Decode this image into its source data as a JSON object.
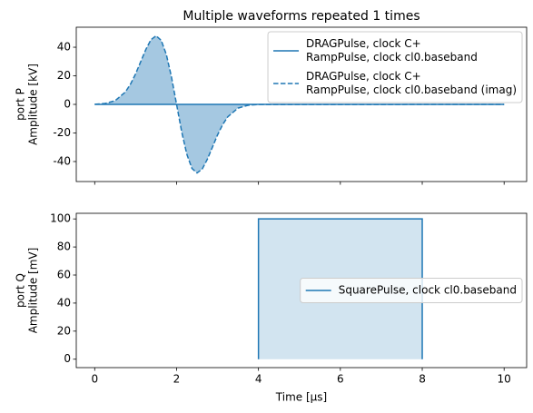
{
  "chart_data": [
    {
      "type": "line",
      "title": "Multiple waveforms repeated 1 times",
      "ylabel": [
        "port P",
        "Amplitude [kV]"
      ],
      "x": [
        0,
        0.25,
        0.5,
        0.75,
        0.875,
        1,
        1.125,
        1.25,
        1.375,
        1.5,
        1.625,
        1.75,
        1.875,
        2,
        2.125,
        2.25,
        2.375,
        2.5,
        2.625,
        2.75,
        2.875,
        3,
        3.125,
        3.25,
        3.5,
        3.75,
        4,
        10
      ],
      "series": [
        {
          "name": [
            "DRAGPulse, clock C+",
            "RampPulse, clock cl0.baseband"
          ],
          "color": "#1f77b4",
          "linestyle": "solid",
          "values": [
            0,
            0,
            0,
            0,
            0,
            0,
            0,
            0,
            0,
            0,
            0,
            0,
            0,
            0,
            0,
            0,
            0,
            0,
            0,
            0,
            0,
            0,
            0,
            0,
            0,
            0,
            0,
            0
          ]
        },
        {
          "name": [
            "DRAGPulse, clock C+",
            "RampPulse, clock cl0.baseband (imag)"
          ],
          "color": "#1f77b4",
          "linestyle": "dashed",
          "fill": "#a5c8e1",
          "values": [
            0.1,
            0.6,
            2.6,
            8.7,
            14.2,
            21.4,
            30.0,
            38.5,
            45.3,
            48,
            44.8,
            34.9,
            19.2,
            0,
            -19.2,
            -34.9,
            -44.8,
            -48,
            -45.3,
            -38.5,
            -30.0,
            -21.4,
            -14.2,
            -8.7,
            -2.6,
            -0.6,
            -0.1,
            0
          ]
        }
      ],
      "xlim": [
        -0.45,
        10.55
      ],
      "ylim": [
        -54,
        54
      ],
      "xticks": [
        0,
        2,
        4,
        6,
        8,
        10
      ],
      "xticklabels": false,
      "yticks": [
        -40,
        -20,
        0,
        20,
        40
      ],
      "legend": "upper right"
    },
    {
      "type": "line",
      "xlabel": "Time [µs]",
      "ylabel": [
        "port Q",
        "Amplitude [mV]"
      ],
      "x": [
        4,
        4,
        8,
        8
      ],
      "series": [
        {
          "name": [
            "SquarePulse, clock cl0.baseband"
          ],
          "color": "#1f77b4",
          "linestyle": "solid",
          "fill": "#d2e4f0",
          "values": [
            0,
            100,
            100,
            0
          ]
        }
      ],
      "xlim": [
        -0.45,
        10.55
      ],
      "ylim": [
        -6,
        104
      ],
      "xticks": [
        0,
        2,
        4,
        6,
        8,
        10
      ],
      "xticklabels": true,
      "yticks": [
        0,
        20,
        40,
        60,
        80,
        100
      ],
      "legend": "center right"
    }
  ]
}
